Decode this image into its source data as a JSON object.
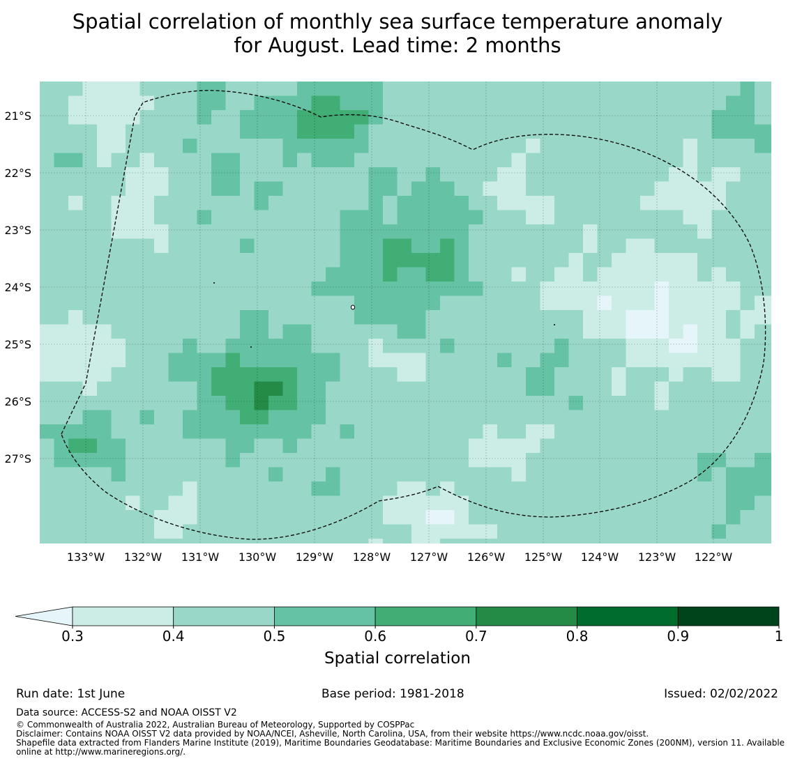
{
  "title_line1": "Spatial correlation of monthly sea surface temperature anomaly",
  "title_line2": "for August. Lead time: 2 months",
  "map": {
    "lon_labels": [
      "133°W",
      "132°W",
      "131°W",
      "130°W",
      "129°W",
      "128°W",
      "127°W",
      "126°W",
      "125°W",
      "124°W",
      "123°W",
      "122°W"
    ],
    "lat_labels": [
      "21°S",
      "22°S",
      "23°S",
      "24°S",
      "25°S",
      "26°S",
      "27°S"
    ],
    "gridlines": true,
    "boundary_line": "dashed",
    "colors": [
      "#e5f5f9",
      "#ccece6",
      "#99d8c9",
      "#66c2a4",
      "#41ae76",
      "#238b45",
      "#006d2c",
      "#00441b"
    ]
  },
  "colorbar": {
    "ticks": [
      "0.3",
      "0.4",
      "0.5",
      "0.6",
      "0.7",
      "0.8",
      "0.9",
      "1"
    ],
    "label": "Spatial correlation",
    "extend": "min"
  },
  "footer": {
    "run_date": "Run date: 1st June",
    "base_period": "Base period: 1981-2018",
    "issued": "Issued: 02/02/2022",
    "data_source": "Data source: ACCESS-S2 and NOAA OISST V2",
    "copyright": "© Commonwealth of Australia 2022, Australian Bureau of Meteorology, Supported by COSPPac",
    "disclaimer": "Disclaimer: Contains NOAA OISST V2 data provided by NOAA/NCEI, Asheville, North Carolina, USA, from their website https://www.ncdc.noaa.gov/oisst.",
    "shapefile": "Shapefile data extracted from Flanders Marine Institute (2019), Maritime Boundaries Geodatabase: Maritime Boundaries and Exclusive Economic Zones (200NM), version 11. Available online at http://www.marineregions.org/."
  }
}
